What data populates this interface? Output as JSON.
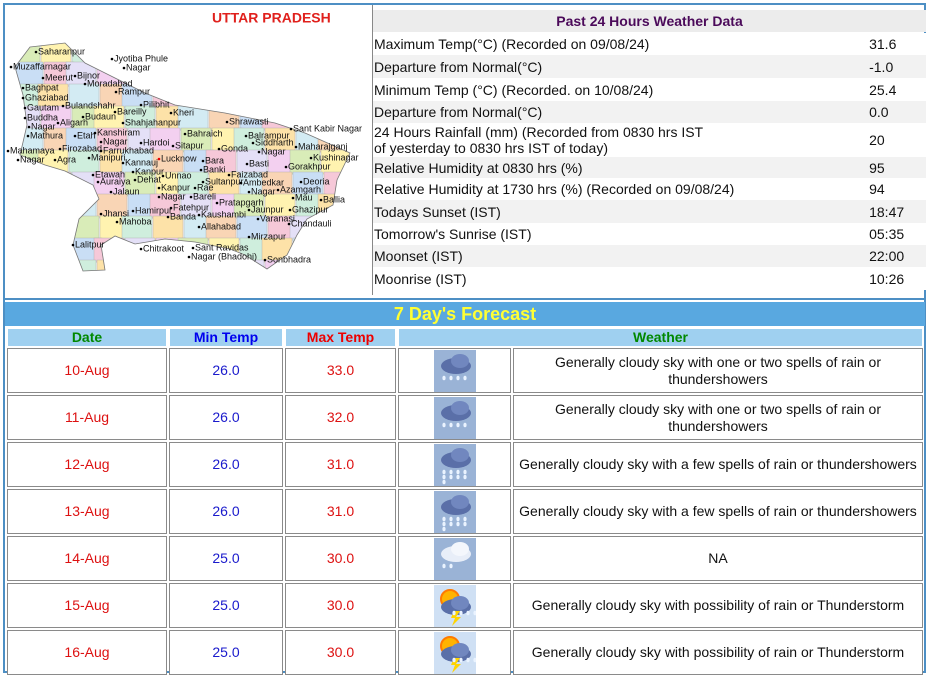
{
  "map": {
    "title": "UTTAR PRADESH",
    "labels": [
      "Saharanpur",
      "Jyotiba Phule",
      "Nagar",
      "Muzaffarnagar",
      "Meerut",
      "Bijnor",
      "Moradabad",
      "Baghpat",
      "Rampur",
      "Ghaziabad",
      "Gautam",
      "Buddha",
      "Nagar",
      "Bulandshahr",
      "Pilibhit",
      "Budaun",
      "Bareilly",
      "Kheri",
      "Aligarh",
      "Shahjahanpur",
      "Shrawasti",
      "Mathura",
      "Etah",
      "Kanshiram",
      "Nagar",
      "Bahraich",
      "Sant Kabir Nagar",
      "Hardoi",
      "Balrampur",
      "Mahamaya",
      "Nagar",
      "Agra",
      "Firozabad",
      "Farrukhabad",
      "Sitapur",
      "Siddharth",
      "Nagar",
      "Maharajganj",
      "Gonda",
      "Kushinagar",
      "Manipuri",
      "Kannauj",
      "Lucknow",
      "Bara",
      "Basti",
      "Gorakhpur",
      "Etawah",
      "Kanpur",
      "Banki",
      "Faizabad",
      "Deoria",
      "Auraiya",
      "Unnao",
      "Sultanpur",
      "Ambedkar",
      "Nagar",
      "Azamgarh",
      "Mau",
      "Ballia",
      "Jalaun",
      "Kanpur",
      "Nagar",
      "Rae",
      "Bareli",
      "Pratapgarh",
      "Jaunpur",
      "Ghazipur",
      "Fatehpur",
      "Jhansi",
      "Hamirpur",
      "Banda",
      "Kaushambi",
      "Varanasi",
      "Chandauli",
      "Mahoba",
      "Allahabad",
      "Mirzapur",
      "Lalitpur",
      "Chitrakoot",
      "Sant Ravidas",
      "Nagar (Bhadohi)",
      "Sonbhadra",
      "Dehat"
    ]
  },
  "past24": {
    "title": "Past 24 Hours Weather Data",
    "rows": [
      [
        "Maximum Temp(°C) (Recorded on 09/08/24)",
        "31.6"
      ],
      [
        "Departure from Normal(°C)",
        "-1.0"
      ],
      [
        "Minimum Temp (°C) (Recorded. on 10/08/24)",
        "25.4"
      ],
      [
        "Departure from Normal(°C)",
        "0.0"
      ],
      [
        "24 Hours Rainfall (mm) (Recorded from 0830 hrs IST\nof yesterday to 0830 hrs IST of today)",
        "20"
      ],
      [
        "Relative Humidity at 0830 hrs (%)",
        "95"
      ],
      [
        "Relative Humidity at 1730 hrs (%) (Recorded on 09/08/24)",
        "94"
      ],
      [
        "Todays Sunset (IST)",
        "18:47"
      ],
      [
        "Tomorrow's Sunrise (IST)",
        "05:35"
      ],
      [
        "Moonset (IST)",
        "22:00"
      ],
      [
        "Moonrise (IST)",
        "10:26"
      ]
    ]
  },
  "forecast": {
    "title": "7 Day's Forecast",
    "headers": [
      "Date",
      "Min Temp",
      "Max Temp",
      "Weather"
    ],
    "rows": [
      [
        "10-Aug",
        "26.0",
        "33.0",
        "Generally cloudy sky with one or two spells of rain or thundershowers"
      ],
      [
        "11-Aug",
        "26.0",
        "32.0",
        "Generally cloudy sky with one or two spells of rain or thundershowers"
      ],
      [
        "12-Aug",
        "26.0",
        "31.0",
        "Generally cloudy sky with a few spells of rain or thundershowers"
      ],
      [
        "13-Aug",
        "26.0",
        "31.0",
        "Generally cloudy sky with a few spells of rain or thundershowers"
      ],
      [
        "14-Aug",
        "25.0",
        "30.0",
        "NA"
      ],
      [
        "15-Aug",
        "25.0",
        "30.0",
        "Generally cloudy sky with possibility of rain or Thunderstorm"
      ],
      [
        "16-Aug",
        "25.0",
        "30.0",
        "Generally cloudy sky with possibility of rain or Thunderstorm"
      ]
    ]
  }
}
